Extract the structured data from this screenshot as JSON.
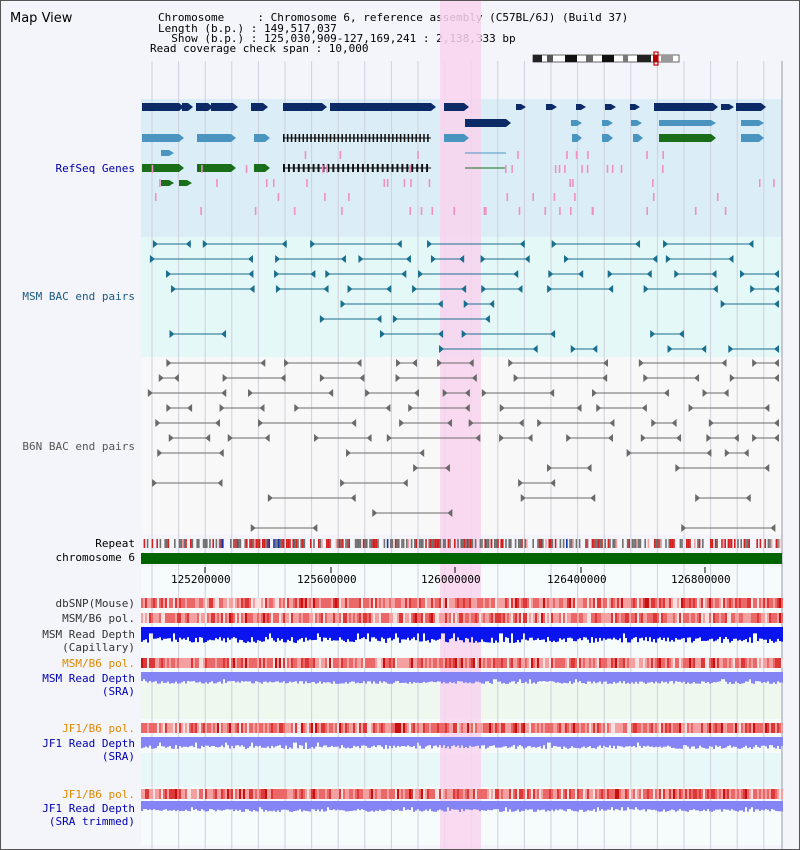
{
  "app_title": "Map View",
  "info": {
    "chromosome_line": "Chromosome     : Chromosome 6, reference assembly (C57BL/6J) (Build 37)",
    "length_line": "Length (b.p.) : 149,517,037",
    "show_line": "  Show (b.p.) : 125,030,909-127,169,241 : 2,138,333 bp",
    "coverage_line": "Read coverage check span : 10,000"
  },
  "axis_ticks": [
    "125200000",
    "125600000",
    "126000000",
    "126400000",
    "126800000"
  ],
  "tracks": {
    "refseq": "RefSeq Genes",
    "msm_bac": "MSM BAC end pairs",
    "b6n_bac": "B6N BAC end pairs",
    "repeat": "Repeat",
    "chromosome": "chromosome 6",
    "dbsnp": "dbSNP(Mouse)",
    "msm_b6_pol_1": "MSM/B6 pol.",
    "msm_depth_cap_1": "MSM Read Depth",
    "msm_depth_cap_2": "(Capillary)",
    "msm_b6_pol_2": "MSM/B6 pol.",
    "msm_depth_sra_1": "MSM Read Depth",
    "msm_depth_sra_2": "(SRA)",
    "jf1_b6_pol_1": "JF1/B6 pol.",
    "jf1_depth_sra_1": "JF1 Read Depth",
    "jf1_depth_sra_2": "(SRA)",
    "jf1_b6_pol_2": "JF1/B6 pol.",
    "jf1_depth_trim_1": "JF1 Read Depth",
    "jf1_depth_trim_2": "(SRA trimmed)"
  },
  "colors": {
    "refseq_dark": "#0b2a66",
    "refseq_mid": "#4a95c0",
    "refseq_green": "#1a6e1a",
    "bac_msm": "#1a6e8e",
    "bac_b6n": "#6a6a6a",
    "highlight": "#f8d4ee",
    "chrom_green": "#006400",
    "depth_dark_blue": "#0a14ee",
    "depth_light_blue": "#8484f4",
    "snp_red": "#e84040"
  },
  "icons": [
    "chromosome-ideogram-icon"
  ]
}
